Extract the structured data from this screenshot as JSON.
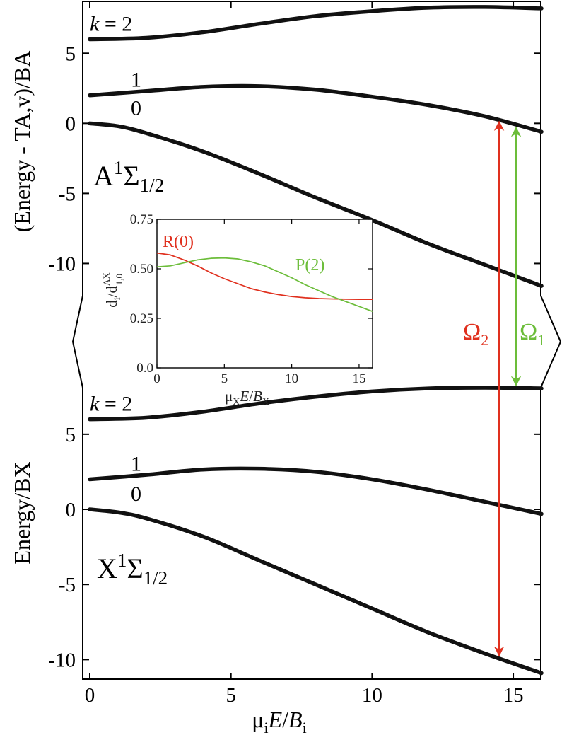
{
  "chart_data": {
    "type": "line",
    "x_axis": {
      "title_prefix": "μ",
      "title_sub": "i",
      "title_italic": "E",
      "title_mid": "/",
      "title_italic2": "B",
      "title_sub2": "i",
      "range": [
        0,
        16
      ],
      "ticks": [
        0,
        5,
        10,
        15
      ]
    },
    "upper_panel": {
      "ylabel": "(Energy - TA,v)/BA",
      "ylim": [
        -12.3,
        8.7
      ],
      "ticks": [
        5,
        0,
        -5,
        -10
      ],
      "state_main": "A",
      "state_sup": "1",
      "state_sym": "Σ",
      "state_sub": "1/2",
      "k_prefix": "k",
      "k_eq": " = 2",
      "curve_labels": [
        "1",
        "0"
      ],
      "series": [
        {
          "k": 2,
          "x": [
            0,
            2,
            4,
            6,
            8,
            10,
            12,
            14,
            16
          ],
          "y": [
            6.0,
            6.1,
            6.5,
            7.1,
            7.65,
            8.0,
            8.25,
            8.3,
            8.2
          ]
        },
        {
          "k": 1,
          "x": [
            0,
            2,
            4,
            6,
            8,
            10,
            12,
            14,
            16
          ],
          "y": [
            2.0,
            2.3,
            2.6,
            2.65,
            2.4,
            1.9,
            1.3,
            0.5,
            -0.6
          ]
        },
        {
          "k": 0,
          "x": [
            0,
            1,
            2,
            4,
            6,
            8,
            10,
            12,
            14,
            16
          ],
          "y": [
            0.0,
            -0.2,
            -0.7,
            -2.0,
            -3.6,
            -5.3,
            -6.9,
            -8.6,
            -10.1,
            -11.6
          ]
        }
      ]
    },
    "lower_panel": {
      "ylabel": "Energy/BX",
      "ylim": [
        -11.3,
        8.1
      ],
      "ticks": [
        5,
        0,
        -5,
        -10
      ],
      "state_main": "X",
      "state_sup": "1",
      "state_sym": "Σ",
      "state_sub": "1/2",
      "k_prefix": "k",
      "k_eq": " = 2",
      "curve_labels": [
        "1",
        "0"
      ],
      "series": [
        {
          "k": 2,
          "x": [
            0,
            2,
            4,
            6,
            8,
            10,
            12,
            14,
            16
          ],
          "y": [
            6.0,
            6.1,
            6.5,
            7.05,
            7.5,
            7.85,
            8.05,
            8.1,
            8.05
          ]
        },
        {
          "k": 1,
          "x": [
            0,
            2,
            4,
            6,
            8,
            10,
            12,
            14,
            16
          ],
          "y": [
            2.0,
            2.3,
            2.65,
            2.7,
            2.5,
            2.0,
            1.3,
            0.5,
            -0.3
          ]
        },
        {
          "k": 0,
          "x": [
            0,
            1,
            2,
            4,
            6,
            8,
            10,
            12,
            14,
            16
          ],
          "y": [
            0.0,
            -0.2,
            -0.6,
            -1.8,
            -3.4,
            -5.0,
            -6.6,
            -8.2,
            -9.6,
            -10.9
          ]
        }
      ]
    },
    "arrows": [
      {
        "label": "Ω",
        "sub": "2",
        "color": "#e0301e",
        "x": 14.5,
        "from": "upper k=0",
        "to": "lower k=0"
      },
      {
        "label": "Ω",
        "sub": "1",
        "color": "#6cbd3a",
        "x": 15.1,
        "from": "upper k=0",
        "to": "lower k=2"
      }
    ],
    "inset": {
      "xlim": [
        0,
        16
      ],
      "ylim": [
        0.0,
        0.75
      ],
      "xticks": [
        0,
        5,
        10,
        15
      ],
      "yticks": [
        "0.0",
        "0.25",
        "0.50",
        "0.75"
      ],
      "xlabel_prefix": "μ",
      "xlabel_sub": "X",
      "xlabel_italic": "E",
      "xlabel_mid": "/",
      "xlabel_italic2": "B",
      "xlabel_sub2": "X",
      "ylabel_d": "d",
      "ylabel_sub": "i",
      "ylabel_mid": "/d",
      "ylabel_sup": "AX",
      "ylabel_sub2": "1,0",
      "series": [
        {
          "name": "R(0)",
          "color": "#e0301e",
          "x": [
            0,
            1,
            2,
            3,
            4,
            5,
            6,
            7,
            8,
            9,
            10,
            11,
            12,
            13,
            14,
            15,
            16
          ],
          "y": [
            0.58,
            0.57,
            0.545,
            0.515,
            0.48,
            0.45,
            0.425,
            0.4,
            0.383,
            0.37,
            0.36,
            0.354,
            0.35,
            0.348,
            0.347,
            0.346,
            0.346
          ]
        },
        {
          "name": "P(2)",
          "color": "#6cbd3a",
          "x": [
            0,
            1,
            2,
            3,
            4,
            5,
            6,
            7,
            8,
            9,
            10,
            11,
            12,
            13,
            14,
            15,
            16
          ],
          "y": [
            0.51,
            0.515,
            0.53,
            0.545,
            0.553,
            0.555,
            0.55,
            0.535,
            0.515,
            0.485,
            0.455,
            0.42,
            0.39,
            0.36,
            0.335,
            0.31,
            0.285
          ]
        }
      ]
    }
  }
}
